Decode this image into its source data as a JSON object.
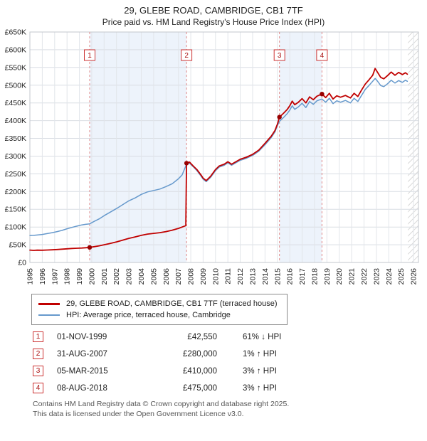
{
  "title": "29, GLEBE ROAD, CAMBRIDGE, CB1 7TF",
  "subtitle": "Price paid vs. HM Land Registry's House Price Index (HPI)",
  "sales": [
    {
      "n": "1",
      "date": "01-NOV-1999",
      "price": "£42,550",
      "hpi": "61% ↓ HPI",
      "year": 1999.83,
      "value": 42550
    },
    {
      "n": "2",
      "date": "31-AUG-2007",
      "price": "£280,000",
      "hpi": "1% ↑ HPI",
      "year": 2007.66,
      "value": 280000
    },
    {
      "n": "3",
      "date": "05-MAR-2015",
      "price": "£410,000",
      "hpi": "3% ↑ HPI",
      "year": 2015.17,
      "value": 410000
    },
    {
      "n": "4",
      "date": "08-AUG-2018",
      "price": "£475,000",
      "hpi": "3% ↑ HPI",
      "year": 2018.6,
      "value": 475000
    }
  ],
  "footer": [
    "Contains HM Land Registry data © Crown copyright and database right 2025.",
    "This data is licensed under the Open Government Licence v3.0."
  ],
  "chart_data": {
    "type": "line",
    "x_range": [
      1995,
      2026.4
    ],
    "y_range": [
      0,
      650000
    ],
    "y_tick_step": 50000,
    "x_tick_step": 1,
    "grid": true,
    "legend_position": "bottom",
    "band_color": "#edf3fb",
    "ownership_bands": [
      [
        1999.83,
        2007.66
      ],
      [
        2015.17,
        2018.6
      ]
    ],
    "hatch_from": 2025.55,
    "sale_line_color": "#e08888",
    "marker_color": "#990000",
    "series": [
      {
        "id": "price-paid",
        "name": "29, GLEBE ROAD, CAMBRIDGE, CB1 7TF (terraced house)",
        "color": "#c00000",
        "width": 1.8,
        "points": [
          [
            1995.0,
            35000
          ],
          [
            1995.3,
            34200
          ],
          [
            1995.6,
            34800
          ],
          [
            1996.0,
            34500
          ],
          [
            1996.4,
            35200
          ],
          [
            1996.8,
            35800
          ],
          [
            1997.2,
            36500
          ],
          [
            1997.6,
            37500
          ],
          [
            1998.0,
            38500
          ],
          [
            1998.4,
            39500
          ],
          [
            1998.8,
            40200
          ],
          [
            1999.2,
            40800
          ],
          [
            1999.5,
            41500
          ],
          [
            1999.83,
            42550
          ],
          [
            2000.2,
            44500
          ],
          [
            2000.6,
            47000
          ],
          [
            2001.0,
            50000
          ],
          [
            2001.4,
            53000
          ],
          [
            2002.0,
            58000
          ],
          [
            2002.5,
            63000
          ],
          [
            2003.0,
            68000
          ],
          [
            2003.5,
            72000
          ],
          [
            2004.0,
            76500
          ],
          [
            2004.5,
            80000
          ],
          [
            2005.0,
            82000
          ],
          [
            2005.5,
            84000
          ],
          [
            2006.0,
            87000
          ],
          [
            2006.5,
            91000
          ],
          [
            2007.0,
            96000
          ],
          [
            2007.3,
            100000
          ],
          [
            2007.6,
            104000
          ],
          [
            2007.66,
            280000
          ],
          [
            2007.9,
            283000
          ],
          [
            2008.2,
            272000
          ],
          [
            2008.5,
            262000
          ],
          [
            2008.8,
            248000
          ],
          [
            2009.0,
            238000
          ],
          [
            2009.25,
            231000
          ],
          [
            2009.6,
            243000
          ],
          [
            2010.0,
            262000
          ],
          [
            2010.3,
            272000
          ],
          [
            2010.7,
            277000
          ],
          [
            2011.0,
            284000
          ],
          [
            2011.3,
            277000
          ],
          [
            2011.6,
            283000
          ],
          [
            2012.0,
            291000
          ],
          [
            2012.5,
            297000
          ],
          [
            2013.0,
            305000
          ],
          [
            2013.5,
            317000
          ],
          [
            2014.0,
            336000
          ],
          [
            2014.5,
            356000
          ],
          [
            2014.8,
            372000
          ],
          [
            2015.0,
            390000
          ],
          [
            2015.17,
            410000
          ],
          [
            2015.5,
            421000
          ],
          [
            2015.8,
            432000
          ],
          [
            2016.0,
            442000
          ],
          [
            2016.2,
            455000
          ],
          [
            2016.4,
            445000
          ],
          [
            2016.7,
            452000
          ],
          [
            2017.0,
            462000
          ],
          [
            2017.3,
            450000
          ],
          [
            2017.6,
            467000
          ],
          [
            2017.9,
            459000
          ],
          [
            2018.2,
            469000
          ],
          [
            2018.6,
            475000
          ],
          [
            2018.9,
            465000
          ],
          [
            2019.2,
            477000
          ],
          [
            2019.5,
            461000
          ],
          [
            2019.8,
            470000
          ],
          [
            2020.1,
            466000
          ],
          [
            2020.5,
            471000
          ],
          [
            2020.9,
            464000
          ],
          [
            2021.2,
            477000
          ],
          [
            2021.5,
            468000
          ],
          [
            2021.8,
            486000
          ],
          [
            2022.1,
            503000
          ],
          [
            2022.4,
            515000
          ],
          [
            2022.7,
            528000
          ],
          [
            2022.9,
            547000
          ],
          [
            2023.1,
            536000
          ],
          [
            2023.35,
            522000
          ],
          [
            2023.6,
            518000
          ],
          [
            2023.9,
            527000
          ],
          [
            2024.2,
            537000
          ],
          [
            2024.5,
            528000
          ],
          [
            2024.8,
            536000
          ],
          [
            2025.1,
            530000
          ],
          [
            2025.35,
            535000
          ],
          [
            2025.5,
            531000
          ]
        ]
      },
      {
        "id": "hpi",
        "name": "HPI: Average price, terraced house, Cambridge",
        "color": "#6699cc",
        "width": 1.5,
        "points": [
          [
            1995.0,
            76000
          ],
          [
            1995.3,
            76500
          ],
          [
            1995.6,
            77500
          ],
          [
            1996.0,
            79000
          ],
          [
            1996.4,
            81500
          ],
          [
            1996.8,
            84000
          ],
          [
            1997.2,
            87000
          ],
          [
            1997.6,
            90500
          ],
          [
            1998.0,
            95000
          ],
          [
            1998.4,
            99000
          ],
          [
            1998.8,
            102500
          ],
          [
            1999.2,
            106000
          ],
          [
            1999.5,
            107500
          ],
          [
            1999.83,
            109000
          ],
          [
            2000.2,
            116000
          ],
          [
            2000.6,
            123000
          ],
          [
            2001.0,
            132000
          ],
          [
            2001.4,
            140000
          ],
          [
            2002.0,
            152000
          ],
          [
            2002.5,
            163000
          ],
          [
            2003.0,
            174000
          ],
          [
            2003.5,
            182000
          ],
          [
            2004.0,
            192000
          ],
          [
            2004.5,
            199000
          ],
          [
            2005.0,
            203000
          ],
          [
            2005.5,
            207000
          ],
          [
            2006.0,
            214000
          ],
          [
            2006.5,
            222000
          ],
          [
            2007.0,
            236000
          ],
          [
            2007.3,
            247000
          ],
          [
            2007.66,
            277000
          ],
          [
            2007.9,
            280000
          ],
          [
            2008.2,
            270000
          ],
          [
            2008.5,
            259000
          ],
          [
            2008.8,
            245000
          ],
          [
            2009.0,
            235000
          ],
          [
            2009.25,
            228000
          ],
          [
            2009.6,
            240000
          ],
          [
            2010.0,
            259000
          ],
          [
            2010.3,
            269000
          ],
          [
            2010.7,
            274000
          ],
          [
            2011.0,
            281000
          ],
          [
            2011.3,
            274000
          ],
          [
            2011.6,
            280000
          ],
          [
            2012.0,
            288000
          ],
          [
            2012.5,
            294000
          ],
          [
            2013.0,
            302000
          ],
          [
            2013.5,
            314000
          ],
          [
            2014.0,
            332000
          ],
          [
            2014.5,
            352000
          ],
          [
            2014.8,
            368000
          ],
          [
            2015.0,
            386000
          ],
          [
            2015.17,
            398000
          ],
          [
            2015.5,
            409000
          ],
          [
            2015.8,
            420000
          ],
          [
            2016.0,
            430000
          ],
          [
            2016.2,
            442000
          ],
          [
            2016.4,
            432000
          ],
          [
            2016.7,
            439000
          ],
          [
            2017.0,
            449000
          ],
          [
            2017.3,
            437000
          ],
          [
            2017.6,
            454000
          ],
          [
            2017.9,
            446000
          ],
          [
            2018.2,
            456000
          ],
          [
            2018.6,
            461000
          ],
          [
            2018.9,
            452000
          ],
          [
            2019.2,
            463000
          ],
          [
            2019.5,
            448000
          ],
          [
            2019.8,
            456000
          ],
          [
            2020.1,
            452000
          ],
          [
            2020.5,
            457000
          ],
          [
            2020.9,
            450000
          ],
          [
            2021.2,
            463000
          ],
          [
            2021.5,
            454000
          ],
          [
            2021.8,
            471000
          ],
          [
            2022.1,
            488000
          ],
          [
            2022.4,
            499000
          ],
          [
            2022.7,
            511000
          ],
          [
            2022.9,
            519000
          ],
          [
            2023.1,
            511000
          ],
          [
            2023.35,
            499000
          ],
          [
            2023.6,
            496000
          ],
          [
            2023.9,
            504000
          ],
          [
            2024.2,
            514000
          ],
          [
            2024.5,
            506000
          ],
          [
            2024.8,
            513000
          ],
          [
            2025.1,
            508000
          ],
          [
            2025.35,
            514000
          ],
          [
            2025.5,
            511000
          ]
        ]
      }
    ]
  }
}
